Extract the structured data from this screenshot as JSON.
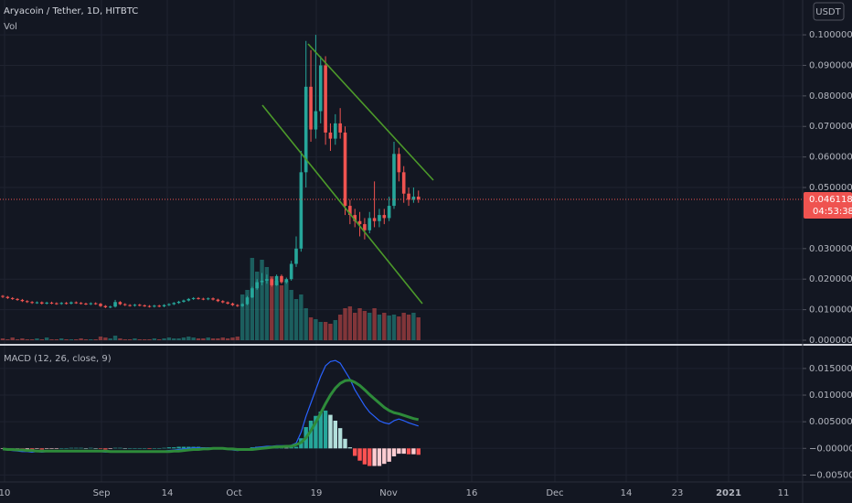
{
  "chart_data": {
    "type": "candlestick",
    "title": "Aryacoin / Tether, 1D, HITBTC",
    "currency": "USDT",
    "countdown": "04:53:38",
    "up_color": "#26a69a",
    "down_color": "#ef5350",
    "ylim": [
      -0.0009,
      0.1114
    ],
    "yticks": [
      {
        "value": 0,
        "label": "0.0000000"
      },
      {
        "value": 0.01,
        "label": "0.0100000"
      },
      {
        "value": 0.02,
        "label": "0.0200000"
      },
      {
        "value": 0.03,
        "label": "0.0300000"
      },
      {
        "value": 0.05,
        "label": "0.0500000"
      },
      {
        "value": 0.06,
        "label": "0.0600000"
      },
      {
        "value": 0.07,
        "label": "0.0700000"
      },
      {
        "value": 0.08,
        "label": "0.0800000"
      },
      {
        "value": 0.09,
        "label": "0.0900000"
      },
      {
        "value": 0.1,
        "label": "0.1000000"
      }
    ],
    "x_labels": [
      "10",
      "Sep",
      "14",
      "Oct",
      "19",
      "Nov",
      "16",
      "Dec",
      "14",
      "23",
      "2021",
      "11"
    ],
    "ohlc": [
      [
        0.0145,
        0.0148,
        0.0138,
        0.0142
      ],
      [
        0.0142,
        0.0145,
        0.0135,
        0.0138
      ],
      [
        0.0138,
        0.0141,
        0.0132,
        0.0135
      ],
      [
        0.0135,
        0.0138,
        0.0129,
        0.0132
      ],
      [
        0.0132,
        0.0135,
        0.0125,
        0.0128
      ],
      [
        0.0128,
        0.0131,
        0.0122,
        0.0125
      ],
      [
        0.0125,
        0.0128,
        0.0119,
        0.0122
      ],
      [
        0.0122,
        0.0127,
        0.0119,
        0.0124
      ],
      [
        0.0124,
        0.0127,
        0.0117,
        0.012
      ],
      [
        0.012,
        0.0126,
        0.0117,
        0.0123
      ],
      [
        0.0123,
        0.0126,
        0.0118,
        0.0121
      ],
      [
        0.0121,
        0.0124,
        0.0116,
        0.0119
      ],
      [
        0.0119,
        0.0125,
        0.0116,
        0.0122
      ],
      [
        0.0122,
        0.0125,
        0.0117,
        0.012
      ],
      [
        0.012,
        0.0127,
        0.0117,
        0.0124
      ],
      [
        0.0124,
        0.0127,
        0.0119,
        0.0122
      ],
      [
        0.0122,
        0.0125,
        0.0117,
        0.012
      ],
      [
        0.012,
        0.0123,
        0.0115,
        0.0118
      ],
      [
        0.0118,
        0.0124,
        0.0115,
        0.0121
      ],
      [
        0.0121,
        0.0124,
        0.0116,
        0.0119
      ],
      [
        0.0119,
        0.0122,
        0.0109,
        0.0112
      ],
      [
        0.0112,
        0.0115,
        0.0105,
        0.0108
      ],
      [
        0.0108,
        0.0113,
        0.0105,
        0.011
      ],
      [
        0.011,
        0.0132,
        0.0107,
        0.0125
      ],
      [
        0.0125,
        0.0128,
        0.0115,
        0.0118
      ],
      [
        0.0118,
        0.0121,
        0.0112,
        0.0115
      ],
      [
        0.0115,
        0.0118,
        0.011,
        0.0113
      ],
      [
        0.0113,
        0.0119,
        0.011,
        0.0116
      ],
      [
        0.0116,
        0.0119,
        0.0111,
        0.0114
      ],
      [
        0.0114,
        0.0117,
        0.0109,
        0.0112
      ],
      [
        0.0112,
        0.0115,
        0.0107,
        0.011
      ],
      [
        0.011,
        0.0116,
        0.0107,
        0.0113
      ],
      [
        0.0113,
        0.0116,
        0.0108,
        0.0111
      ],
      [
        0.0111,
        0.0118,
        0.0108,
        0.0115
      ],
      [
        0.0115,
        0.0121,
        0.0112,
        0.0118
      ],
      [
        0.0118,
        0.0125,
        0.0115,
        0.0122
      ],
      [
        0.0122,
        0.0129,
        0.0119,
        0.0126
      ],
      [
        0.0126,
        0.0133,
        0.0123,
        0.013
      ],
      [
        0.013,
        0.0138,
        0.0127,
        0.0135
      ],
      [
        0.0135,
        0.0141,
        0.0132,
        0.0138
      ],
      [
        0.0138,
        0.0141,
        0.0133,
        0.0136
      ],
      [
        0.0136,
        0.0139,
        0.0131,
        0.0134
      ],
      [
        0.0134,
        0.014,
        0.0131,
        0.0137
      ],
      [
        0.0137,
        0.014,
        0.013,
        0.0133
      ],
      [
        0.0133,
        0.0136,
        0.0125,
        0.0128
      ],
      [
        0.0128,
        0.0131,
        0.0121,
        0.0124
      ],
      [
        0.0124,
        0.0127,
        0.0117,
        0.012
      ],
      [
        0.012,
        0.0123,
        0.0112,
        0.0115
      ],
      [
        0.0115,
        0.0118,
        0.0109,
        0.0112
      ],
      [
        0.0112,
        0.0121,
        0.0109,
        0.0118
      ],
      [
        0.0118,
        0.0145,
        0.0115,
        0.014
      ],
      [
        0.014,
        0.0175,
        0.0138,
        0.017
      ],
      [
        0.017,
        0.02,
        0.0165,
        0.019
      ],
      [
        0.019,
        0.022,
        0.018,
        0.0195
      ],
      [
        0.0195,
        0.0215,
        0.0185,
        0.02
      ],
      [
        0.02,
        0.0205,
        0.0175,
        0.018
      ],
      [
        0.018,
        0.0215,
        0.0178,
        0.021
      ],
      [
        0.021,
        0.0215,
        0.0185,
        0.019
      ],
      [
        0.019,
        0.0205,
        0.0185,
        0.02
      ],
      [
        0.02,
        0.026,
        0.0195,
        0.025
      ],
      [
        0.025,
        0.034,
        0.024,
        0.03
      ],
      [
        0.03,
        0.062,
        0.029,
        0.055
      ],
      [
        0.055,
        0.098,
        0.05,
        0.083
      ],
      [
        0.083,
        0.095,
        0.065,
        0.069
      ],
      [
        0.069,
        0.1,
        0.066,
        0.075
      ],
      [
        0.075,
        0.093,
        0.071,
        0.09
      ],
      [
        0.09,
        0.093,
        0.064,
        0.068
      ],
      [
        0.068,
        0.071,
        0.062,
        0.066
      ],
      [
        0.066,
        0.074,
        0.064,
        0.071
      ],
      [
        0.071,
        0.076,
        0.066,
        0.068
      ],
      [
        0.068,
        0.07,
        0.041,
        0.044
      ],
      [
        0.044,
        0.046,
        0.038,
        0.041
      ],
      [
        0.041,
        0.043,
        0.037,
        0.039
      ],
      [
        0.039,
        0.042,
        0.034,
        0.038
      ],
      [
        0.038,
        0.04,
        0.033,
        0.036
      ],
      [
        0.036,
        0.042,
        0.035,
        0.04
      ],
      [
        0.04,
        0.052,
        0.037,
        0.039
      ],
      [
        0.039,
        0.043,
        0.037,
        0.041
      ],
      [
        0.041,
        0.043,
        0.038,
        0.04
      ],
      [
        0.04,
        0.047,
        0.039,
        0.044
      ],
      [
        0.044,
        0.065,
        0.043,
        0.061
      ],
      [
        0.061,
        0.063,
        0.052,
        0.055
      ],
      [
        0.055,
        0.057,
        0.045,
        0.048
      ],
      [
        0.048,
        0.05,
        0.044,
        0.046
      ],
      [
        0.046,
        0.05,
        0.045,
        0.047
      ],
      [
        0.047,
        0.049,
        0.045,
        0.04611823
      ]
    ],
    "volume": {
      "name": "Vol",
      "lim": [
        0,
        100
      ],
      "values": [
        2,
        1,
        3,
        1,
        2,
        1,
        1,
        2,
        1,
        3,
        1,
        1,
        2,
        1,
        1,
        1,
        2,
        1,
        1,
        1,
        4,
        3,
        2,
        5,
        2,
        1,
        1,
        2,
        1,
        1,
        1,
        2,
        1,
        2,
        3,
        2,
        2,
        3,
        4,
        3,
        2,
        2,
        3,
        2,
        2,
        3,
        2,
        3,
        4,
        50,
        55,
        90,
        75,
        88,
        80,
        70,
        65,
        60,
        65,
        55,
        45,
        50,
        35,
        25,
        23,
        20,
        20,
        18,
        22,
        28,
        35,
        37,
        30,
        35,
        32,
        30,
        35,
        28,
        30,
        27,
        28,
        26,
        30,
        28,
        30,
        25
      ]
    },
    "macd": {
      "name": "MACD (12, 26, close, 9)",
      "ylim": [
        -0.0063,
        0.0191
      ],
      "yticks": [
        {
          "value": -0.005,
          "label": "−0.0050000"
        },
        {
          "value": 0,
          "label": "−0.0000000"
        },
        {
          "value": 0.005,
          "label": "0.0050000"
        },
        {
          "value": 0.01,
          "label": "0.0100000"
        },
        {
          "value": 0.015,
          "label": "0.0150000"
        }
      ],
      "series": [
        {
          "color": "#2962ff",
          "width": 1.2,
          "values": [
            -0.0002,
            -0.0003,
            -0.0004,
            -0.0005,
            -0.0006,
            -0.0006,
            -0.0007,
            -0.0006,
            -0.0007,
            -0.0006,
            -0.0006,
            -0.0006,
            -0.0005,
            -0.0005,
            -0.0004,
            -0.0004,
            -0.0004,
            -0.0005,
            -0.0004,
            -0.0005,
            -0.0006,
            -0.0007,
            -0.0007,
            -0.0005,
            -0.0005,
            -0.0006,
            -0.0006,
            -0.0006,
            -0.0006,
            -0.0006,
            -0.0007,
            -0.0006,
            -0.0006,
            -0.0005,
            -0.0004,
            -0.0003,
            -0.0002,
            -0.0001,
            0,
            0.0001,
            0.0001,
            0.0001,
            0.0001,
            0.0001,
            0,
            -0.0001,
            -0.0002,
            -0.0003,
            -0.0004,
            -0.0003,
            -0.0002,
            0,
            0.0002,
            0.0003,
            0.0004,
            0.0004,
            0.0005,
            0.0005,
            0.0005,
            0.0006,
            0.001,
            0.003,
            0.006,
            0.0085,
            0.011,
            0.0135,
            0.0155,
            0.0163,
            0.0165,
            0.016,
            0.0145,
            0.013,
            0.011,
            0.0095,
            0.008,
            0.0068,
            0.006,
            0.0052,
            0.0048,
            0.0046,
            0.0052,
            0.0055,
            0.0052,
            0.0048,
            0.0045,
            0.0042
          ]
        },
        {
          "color": "#2e8b3a",
          "width": 3,
          "values": [
            -0.0001,
            -0.0002,
            -0.0002,
            -0.0003,
            -0.0003,
            -0.0004,
            -0.0004,
            -0.0005,
            -0.0005,
            -0.0005,
            -0.0005,
            -0.0005,
            -0.0005,
            -0.0005,
            -0.0005,
            -0.0005,
            -0.0005,
            -0.0005,
            -0.0005,
            -0.0005,
            -0.0005,
            -0.0005,
            -0.0006,
            -0.0006,
            -0.0006,
            -0.0006,
            -0.0006,
            -0.0006,
            -0.0006,
            -0.0006,
            -0.0006,
            -0.0006,
            -0.0006,
            -0.0006,
            -0.0006,
            -0.0005,
            -0.0005,
            -0.0004,
            -0.0003,
            -0.0002,
            -0.0002,
            -0.0001,
            -0.0001,
            0,
            0,
            0,
            -0.0001,
            -0.0001,
            -0.0002,
            -0.0002,
            -0.0002,
            -0.0002,
            -0.0001,
            0,
            0.0001,
            0.0002,
            0.0003,
            0.0003,
            0.0004,
            0.0004,
            0.0007,
            0.0011,
            0.002,
            0.0033,
            0.0049,
            0.0066,
            0.0084,
            0.01,
            0.0113,
            0.0122,
            0.0127,
            0.0128,
            0.0124,
            0.0118,
            0.011,
            0.0101,
            0.0093,
            0.0085,
            0.0077,
            0.0071,
            0.0067,
            0.0065,
            0.0062,
            0.0059,
            0.0056,
            0.0054
          ]
        }
      ],
      "histogram": {
        "colors": [
          "#26a69a",
          "#b2dfdb",
          "#ff5252",
          "#ffcdd2"
        ],
        "values": [
          -0.0001,
          -0.0001,
          -0.0002,
          -0.0002,
          -0.0003,
          -0.0002,
          -0.0003,
          -0.0001,
          -0.0002,
          -0.0001,
          -0.0001,
          -0.0001,
          0,
          0,
          0.0001,
          0.0001,
          0.0001,
          0,
          0.0001,
          0,
          -0.0001,
          -0.0002,
          -0.0001,
          0.0001,
          0.0001,
          0,
          0,
          0,
          0,
          0,
          -0.0001,
          0,
          0,
          0.0001,
          0.0002,
          0.0002,
          0.0003,
          0.0003,
          0.0003,
          0.0003,
          0.0003,
          0.0002,
          0.0002,
          0.0001,
          0,
          -0.0001,
          -0.0001,
          -0.0002,
          -0.0002,
          -0.0001,
          0,
          0.0002,
          0.0003,
          0.0003,
          0.0003,
          0.0002,
          0.0002,
          0.0002,
          0.0001,
          0.0002,
          0.0003,
          0.0019,
          0.004,
          0.0052,
          0.0061,
          0.0069,
          0.0071,
          0.0063,
          0.0052,
          0.0038,
          0.0018,
          0.0002,
          -0.0014,
          -0.0023,
          -0.003,
          -0.0033,
          -0.0033,
          -0.0033,
          -0.0029,
          -0.0025,
          -0.0015,
          -0.001,
          -0.001,
          -0.0011,
          -0.0011,
          -0.0012
        ]
      }
    }
  }
}
